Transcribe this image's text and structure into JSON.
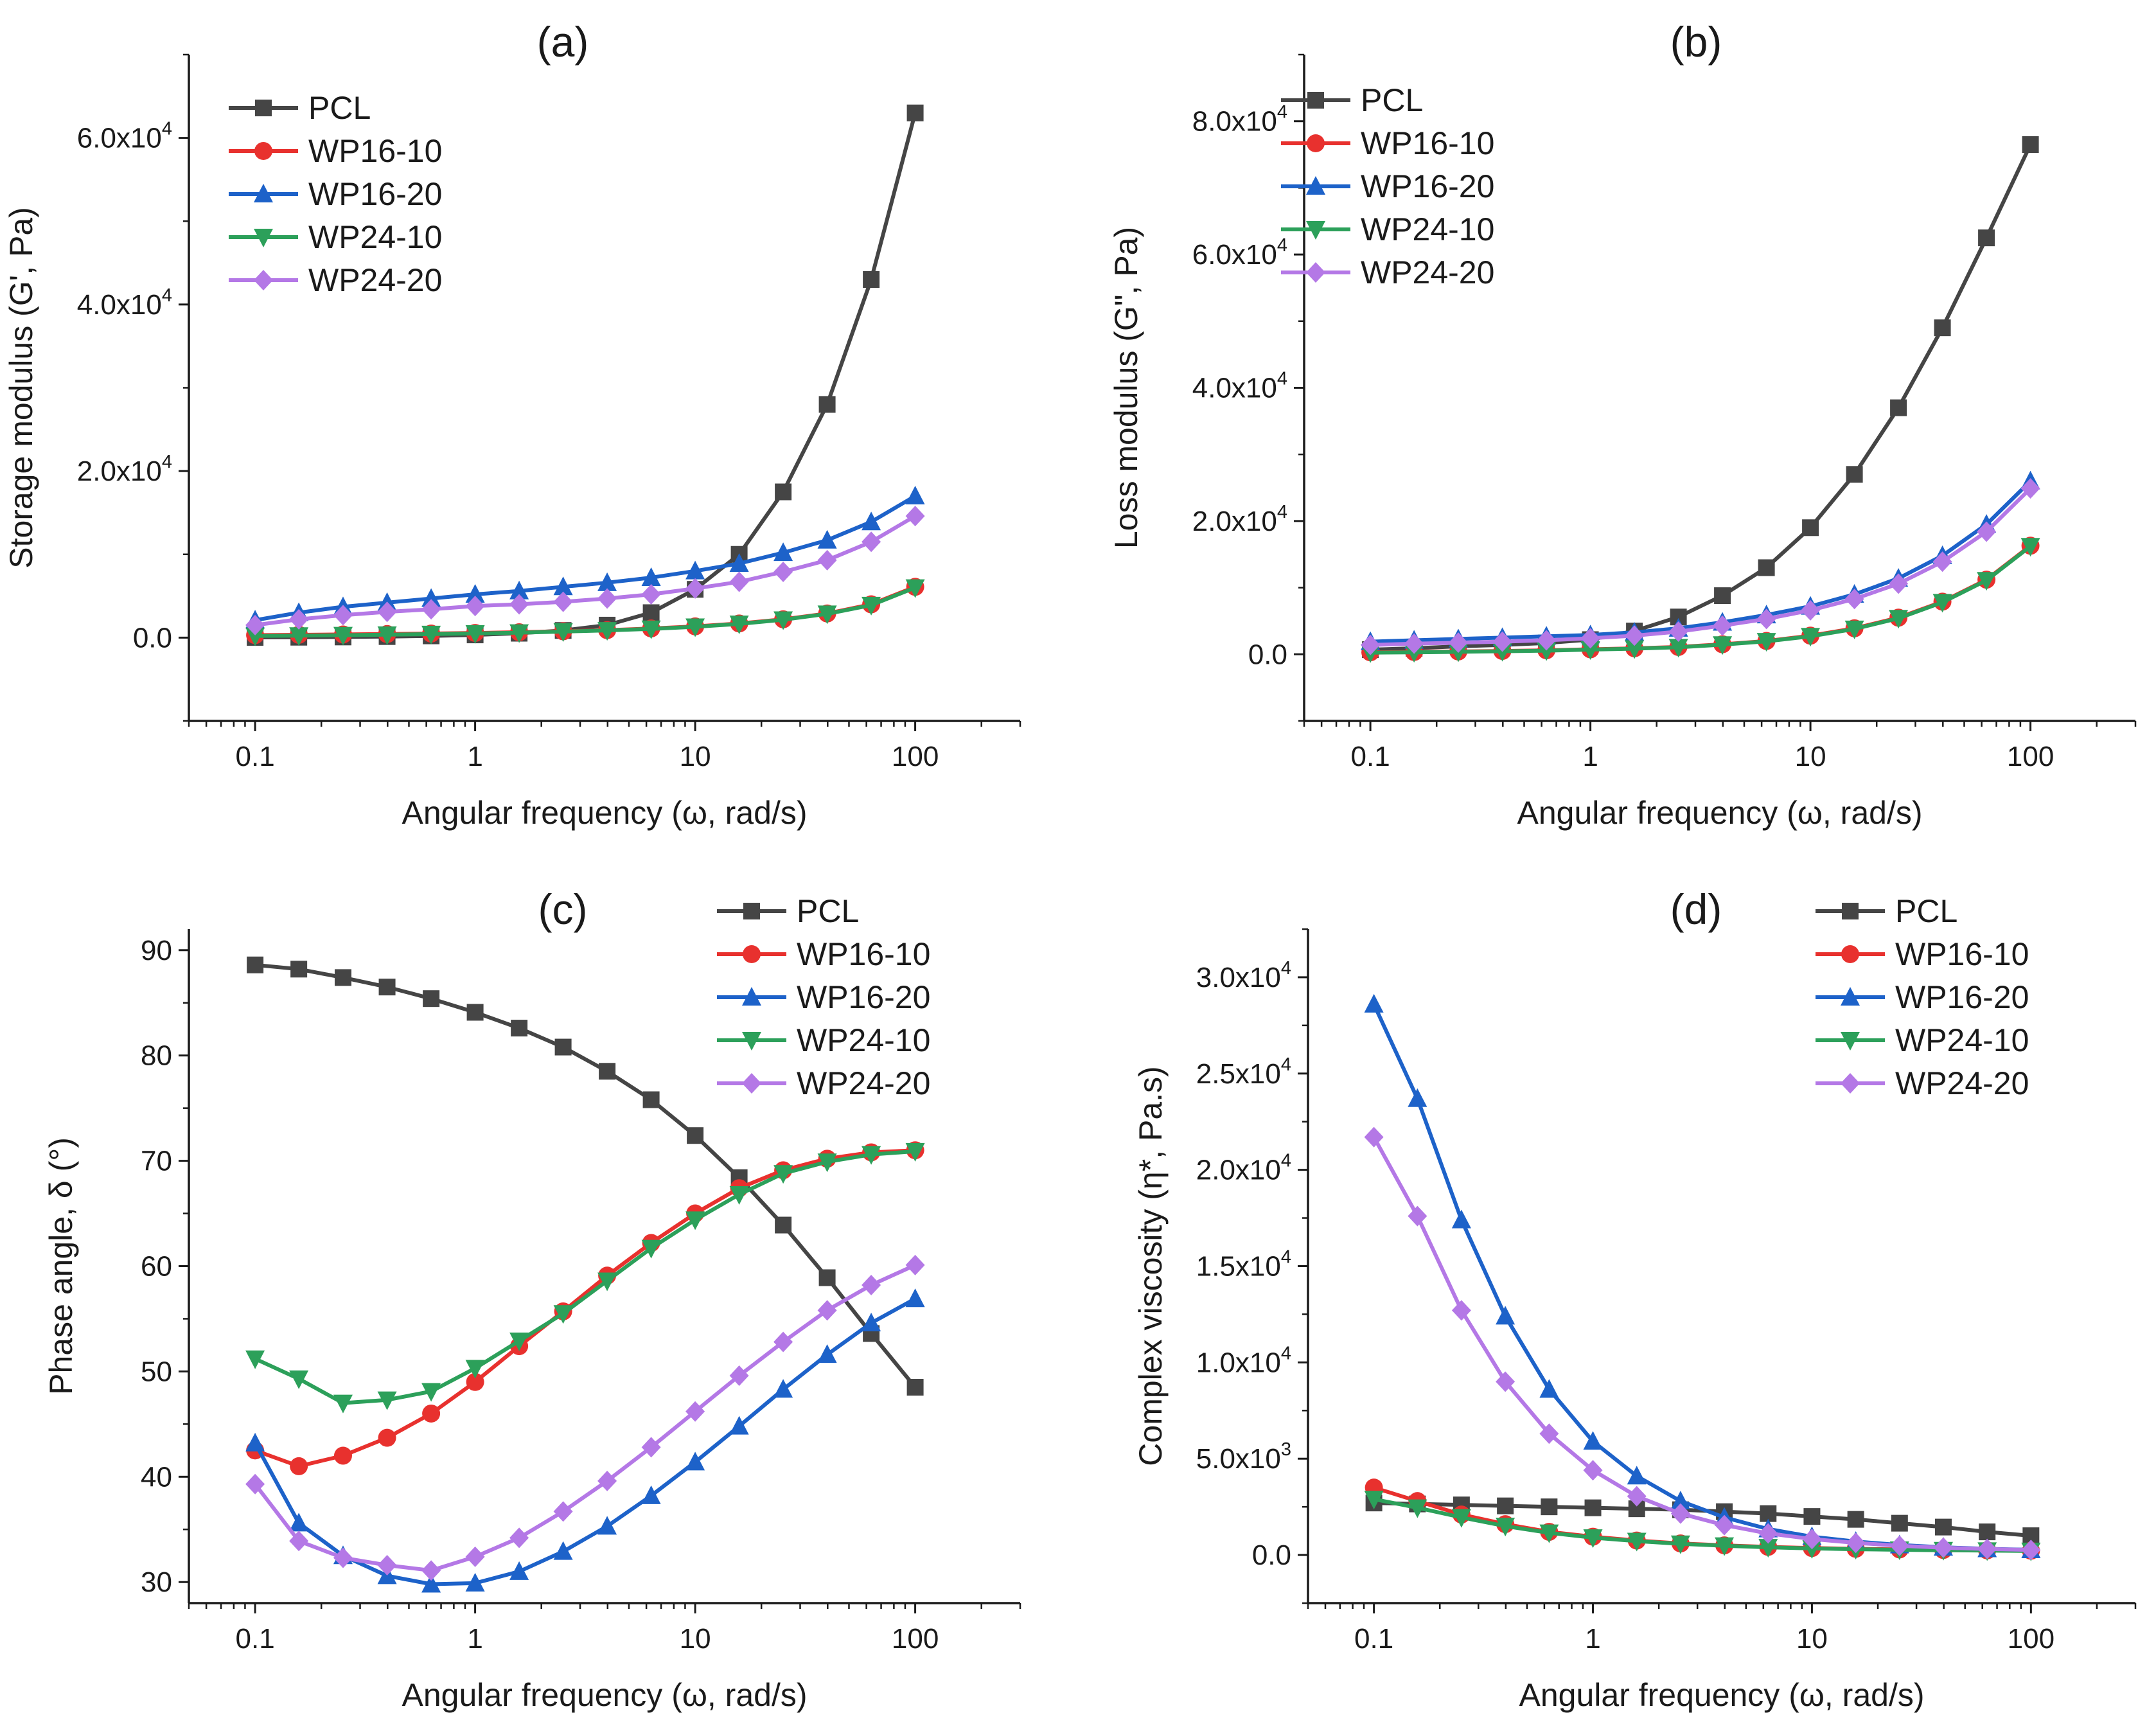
{
  "chart_data": [
    {
      "id": "a",
      "type": "line",
      "panel_label": "(a)",
      "xlabel": "Angular frequency (ω, rad/s)",
      "ylabel": "Storage modulus (G', Pa)",
      "xscale": "log",
      "xlim": [
        0.05,
        300
      ],
      "ylim": [
        -10000,
        70000
      ],
      "x_ticks": [
        {
          "v": 0.1,
          "t": "0.1"
        },
        {
          "v": 1,
          "t": "1"
        },
        {
          "v": 10,
          "t": "10"
        },
        {
          "v": 100,
          "t": "100"
        }
      ],
      "y_ticks": [
        {
          "v": 0,
          "m": "0.0",
          "e": ""
        },
        {
          "v": 20000,
          "m": "2.0x10",
          "e": "4"
        },
        {
          "v": 40000,
          "m": "4.0x10",
          "e": "4"
        },
        {
          "v": 60000,
          "m": "6.0x10",
          "e": "4"
        }
      ],
      "legend_position": "top-left",
      "x": [
        0.1,
        0.158,
        0.251,
        0.398,
        0.631,
        1,
        1.585,
        2.512,
        3.981,
        6.31,
        10,
        15.85,
        25.12,
        39.81,
        63.1,
        100
      ],
      "series": [
        {
          "name": "PCL",
          "color": "#454545",
          "marker": "square",
          "values": [
            30,
            50,
            80,
            130,
            210,
            330,
            530,
            860,
            1500,
            3000,
            5800,
            10000,
            17500,
            28000,
            43000,
            63000
          ]
        },
        {
          "name": "WP16-10",
          "color": "#e8312e",
          "marker": "circle",
          "values": [
            300,
            340,
            380,
            430,
            490,
            560,
            650,
            760,
            900,
            1100,
            1350,
            1700,
            2200,
            2900,
            4000,
            6100
          ]
        },
        {
          "name": "WP16-20",
          "color": "#1d62c9",
          "marker": "triangle-up",
          "values": [
            2100,
            3000,
            3700,
            4200,
            4700,
            5200,
            5600,
            6100,
            6600,
            7200,
            8000,
            8900,
            10200,
            11700,
            13900,
            17000
          ]
        },
        {
          "name": "WP24-10",
          "color": "#2ca05a",
          "marker": "triangle-down",
          "values": [
            200,
            240,
            290,
            350,
            420,
            500,
            600,
            720,
            870,
            1050,
            1300,
            1650,
            2150,
            2850,
            3900,
            6000
          ]
        },
        {
          "name": "WP24-20",
          "color": "#b478e6",
          "marker": "diamond",
          "values": [
            1500,
            2200,
            2700,
            3100,
            3400,
            3800,
            4000,
            4300,
            4700,
            5200,
            5900,
            6700,
            7900,
            9300,
            11500,
            14600
          ]
        }
      ]
    },
    {
      "id": "b",
      "type": "line",
      "panel_label": "(b)",
      "xlabel": "Angular frequency (ω, rad/s)",
      "ylabel": "Loss modulus (G\", Pa)",
      "xscale": "log",
      "xlim": [
        0.05,
        300
      ],
      "ylim": [
        -10000,
        90000
      ],
      "x_ticks": [
        {
          "v": 0.1,
          "t": "0.1"
        },
        {
          "v": 1,
          "t": "1"
        },
        {
          "v": 10,
          "t": "10"
        },
        {
          "v": 100,
          "t": "100"
        }
      ],
      "y_ticks": [
        {
          "v": 0,
          "m": "0.0",
          "e": ""
        },
        {
          "v": 20000,
          "m": "2.0x10",
          "e": "4"
        },
        {
          "v": 40000,
          "m": "4.0x10",
          "e": "4"
        },
        {
          "v": 60000,
          "m": "6.0x10",
          "e": "4"
        },
        {
          "v": 80000,
          "m": "8.0x10",
          "e": "4"
        }
      ],
      "legend_position": "top-left",
      "x": [
        0.1,
        0.158,
        0.251,
        0.398,
        0.631,
        1,
        1.585,
        2.512,
        3.981,
        6.31,
        10,
        15.85,
        25.12,
        39.81,
        63.1,
        100
      ],
      "series": [
        {
          "name": "PCL",
          "color": "#454545",
          "marker": "square",
          "values": [
            700,
            900,
            1200,
            1400,
            1700,
            2200,
            3500,
            5600,
            8800,
            13000,
            19000,
            27000,
            37000,
            49000,
            62500,
            76500
          ]
        },
        {
          "name": "WP16-10",
          "color": "#e8312e",
          "marker": "circle",
          "values": [
            300,
            350,
            420,
            500,
            600,
            750,
            900,
            1100,
            1500,
            2000,
            2800,
            3900,
            5500,
            7900,
            11200,
            16300
          ]
        },
        {
          "name": "WP16-20",
          "color": "#1d62c9",
          "marker": "triangle-up",
          "values": [
            1900,
            2100,
            2300,
            2500,
            2700,
            2900,
            3300,
            3900,
            4800,
            5900,
            7200,
            9000,
            11400,
            14800,
            19500,
            26000
          ]
        },
        {
          "name": "WP24-10",
          "color": "#2ca05a",
          "marker": "triangle-down",
          "values": [
            250,
            300,
            370,
            450,
            550,
            700,
            850,
            1050,
            1450,
            1950,
            2700,
            3800,
            5400,
            7800,
            11100,
            16200
          ]
        },
        {
          "name": "WP24-20",
          "color": "#b478e6",
          "marker": "diamond",
          "values": [
            1400,
            1600,
            1750,
            1900,
            2100,
            2400,
            2800,
            3400,
            4300,
            5300,
            6600,
            8300,
            10600,
            13900,
            18400,
            24900
          ]
        }
      ]
    },
    {
      "id": "c",
      "type": "line",
      "panel_label": "(c)",
      "xlabel": "Angular frequency (ω, rad/s)",
      "ylabel": "Phase angle, δ (°)",
      "xscale": "log",
      "xlim": [
        0.05,
        300
      ],
      "ylim": [
        28,
        92
      ],
      "x_ticks": [
        {
          "v": 0.1,
          "t": "0.1"
        },
        {
          "v": 1,
          "t": "1"
        },
        {
          "v": 10,
          "t": "10"
        },
        {
          "v": 100,
          "t": "100"
        }
      ],
      "y_ticks": [
        {
          "v": 30,
          "m": "30",
          "e": ""
        },
        {
          "v": 40,
          "m": "40",
          "e": ""
        },
        {
          "v": 50,
          "m": "50",
          "e": ""
        },
        {
          "v": 60,
          "m": "60",
          "e": ""
        },
        {
          "v": 70,
          "m": "70",
          "e": ""
        },
        {
          "v": 80,
          "m": "80",
          "e": ""
        },
        {
          "v": 90,
          "m": "90",
          "e": ""
        }
      ],
      "legend_position": "top-right",
      "x": [
        0.1,
        0.158,
        0.251,
        0.398,
        0.631,
        1,
        1.585,
        2.512,
        3.981,
        6.31,
        10,
        15.85,
        25.12,
        39.81,
        63.1,
        100
      ],
      "series": [
        {
          "name": "PCL",
          "color": "#454545",
          "marker": "square",
          "values": [
            88.6,
            88.2,
            87.4,
            86.5,
            85.4,
            84.1,
            82.6,
            80.8,
            78.5,
            75.8,
            72.4,
            68.4,
            63.9,
            58.9,
            53.6,
            48.5
          ]
        },
        {
          "name": "WP16-10",
          "color": "#e8312e",
          "marker": "circle",
          "values": [
            42.5,
            41.0,
            42.0,
            43.7,
            46.0,
            49.0,
            52.4,
            55.7,
            59.1,
            62.2,
            65.0,
            67.4,
            69.1,
            70.2,
            70.8,
            71.0
          ]
        },
        {
          "name": "WP16-20",
          "color": "#1d62c9",
          "marker": "triangle-up",
          "values": [
            43.2,
            35.6,
            32.5,
            30.6,
            29.8,
            29.9,
            31.0,
            32.9,
            35.3,
            38.2,
            41.4,
            44.8,
            48.3,
            51.6,
            54.6,
            56.9
          ]
        },
        {
          "name": "WP24-10",
          "color": "#2ca05a",
          "marker": "triangle-down",
          "values": [
            51.2,
            49.3,
            47.0,
            47.3,
            48.1,
            50.3,
            52.9,
            55.5,
            58.6,
            61.7,
            64.4,
            66.8,
            68.8,
            69.9,
            70.6,
            70.9
          ]
        },
        {
          "name": "WP24-20",
          "color": "#b478e6",
          "marker": "diamond",
          "values": [
            39.3,
            33.9,
            32.3,
            31.6,
            31.1,
            32.4,
            34.2,
            36.7,
            39.6,
            42.8,
            46.2,
            49.6,
            52.8,
            55.8,
            58.2,
            60.1
          ]
        }
      ]
    },
    {
      "id": "d",
      "type": "line",
      "panel_label": "(d)",
      "xlabel": "Angular frequency (ω, rad/s)",
      "ylabel": "Complex viscosity (η*, Pa.s)",
      "xscale": "log",
      "xlim": [
        0.05,
        300
      ],
      "ylim": [
        -2500,
        32500
      ],
      "x_ticks": [
        {
          "v": 0.1,
          "t": "0.1"
        },
        {
          "v": 1,
          "t": "1"
        },
        {
          "v": 10,
          "t": "10"
        },
        {
          "v": 100,
          "t": "100"
        }
      ],
      "y_ticks": [
        {
          "v": 0,
          "m": "0.0",
          "e": ""
        },
        {
          "v": 5000,
          "m": "5.0x10",
          "e": "3"
        },
        {
          "v": 10000,
          "m": "1.0x10",
          "e": "4"
        },
        {
          "v": 15000,
          "m": "1.5x10",
          "e": "4"
        },
        {
          "v": 20000,
          "m": "2.0x10",
          "e": "4"
        },
        {
          "v": 25000,
          "m": "2.5x10",
          "e": "4"
        },
        {
          "v": 30000,
          "m": "3.0x10",
          "e": "4"
        }
      ],
      "legend_position": "top-right",
      "x": [
        0.1,
        0.158,
        0.251,
        0.398,
        0.631,
        1,
        1.585,
        2.512,
        3.981,
        6.31,
        10,
        15.85,
        25.12,
        39.81,
        63.1,
        100
      ],
      "series": [
        {
          "name": "PCL",
          "color": "#454545",
          "marker": "square",
          "values": [
            2700,
            2650,
            2600,
            2550,
            2500,
            2450,
            2400,
            2350,
            2250,
            2150,
            2000,
            1850,
            1650,
            1450,
            1200,
            1000
          ]
        },
        {
          "name": "WP16-10",
          "color": "#e8312e",
          "marker": "circle",
          "values": [
            3500,
            2800,
            2100,
            1600,
            1200,
            950,
            750,
            600,
            500,
            420,
            360,
            320,
            290,
            260,
            240,
            220
          ]
        },
        {
          "name": "WP16-20",
          "color": "#1d62c9",
          "marker": "triangle-up",
          "values": [
            28600,
            23700,
            17400,
            12400,
            8600,
            5900,
            4100,
            2800,
            1950,
            1350,
            950,
            700,
            520,
            400,
            320,
            270
          ]
        },
        {
          "name": "WP24-10",
          "color": "#2ca05a",
          "marker": "triangle-down",
          "values": [
            2900,
            2450,
            1950,
            1500,
            1150,
            900,
            720,
            580,
            480,
            400,
            340,
            300,
            270,
            245,
            225,
            205
          ]
        },
        {
          "name": "WP24-20",
          "color": "#b478e6",
          "marker": "diamond",
          "values": [
            21700,
            17600,
            12700,
            9000,
            6300,
            4400,
            3050,
            2150,
            1550,
            1120,
            830,
            630,
            480,
            380,
            310,
            260
          ]
        }
      ]
    }
  ]
}
